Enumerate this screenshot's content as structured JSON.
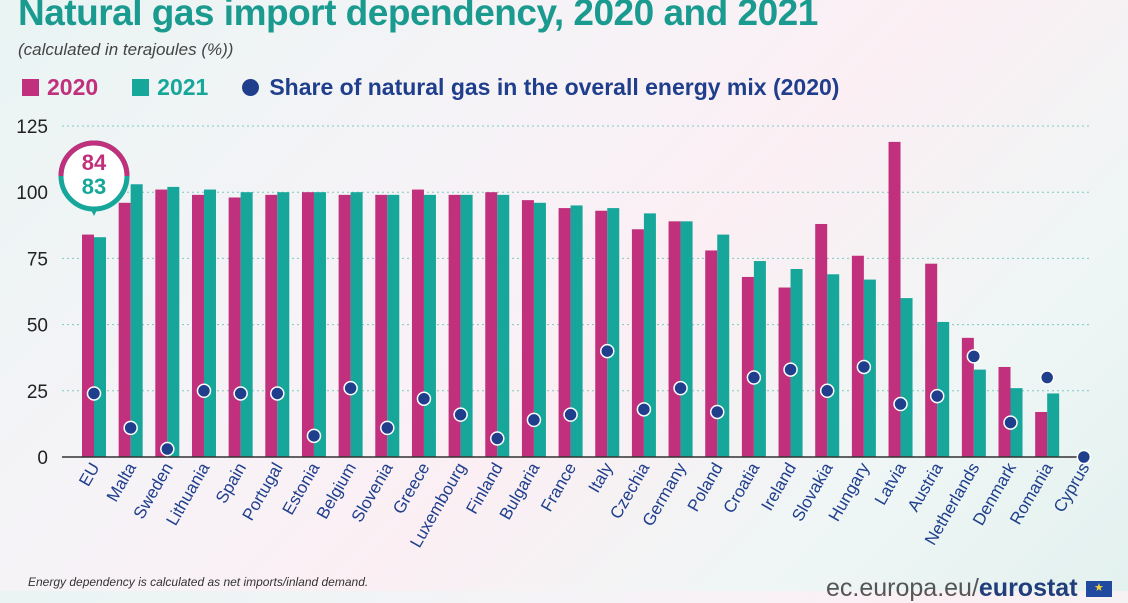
{
  "title": "Natural gas import dependency, 2020 and 2021",
  "subtitle": "(calculated in terajoules (%))",
  "legend": {
    "s2020": "2020",
    "s2021": "2021",
    "share": "Share of natural gas in the overall energy mix (2020)"
  },
  "colors": {
    "c2020": "#c0307c",
    "c2021": "#17a69a",
    "share": "#1f3e8c",
    "grid": "#7ec9c2"
  },
  "callout": {
    "v2020": "84",
    "v2021": "83"
  },
  "footnote": "Energy dependency is calculated as net imports/inland demand.",
  "source": {
    "prefix": "ec.europa.eu/",
    "brand": "eurostat"
  },
  "chart_data": {
    "type": "bar",
    "ylim": [
      0,
      125
    ],
    "yticks": [
      0,
      25,
      50,
      75,
      100,
      125
    ],
    "categories": [
      "EU",
      "Malta",
      "Sweden",
      "Lithuania",
      "Spain",
      "Portugal",
      "Estonia",
      "Belgium",
      "Slovenia",
      "Greece",
      "Luxembourg",
      "Finland",
      "Bulgaria",
      "France",
      "Italy",
      "Czechia",
      "Germany",
      "Poland",
      "Croatia",
      "Ireland",
      "Slovakia",
      "Hungary",
      "Latvia",
      "Austria",
      "Netherlands",
      "Denmark",
      "Romania",
      "Cyprus"
    ],
    "series": [
      {
        "name": "2020",
        "values": [
          84,
          96,
          101,
          99,
          98,
          99,
          100,
          99,
          99,
          101,
          99,
          100,
          97,
          94,
          93,
          86,
          89,
          78,
          68,
          64,
          88,
          76,
          119,
          73,
          45,
          34,
          17,
          0
        ]
      },
      {
        "name": "2021",
        "values": [
          83,
          103,
          102,
          101,
          100,
          100,
          100,
          100,
          99,
          99,
          99,
          99,
          96,
          95,
          94,
          92,
          89,
          84,
          74,
          71,
          69,
          67,
          60,
          51,
          33,
          26,
          24,
          0
        ]
      },
      {
        "name": "Share of natural gas in the overall energy mix (2020)",
        "values": [
          24,
          11,
          3,
          25,
          24,
          24,
          8,
          26,
          11,
          22,
          16,
          7,
          14,
          16,
          40,
          18,
          26,
          17,
          30,
          33,
          25,
          34,
          20,
          23,
          38,
          13,
          30,
          0
        ]
      }
    ]
  }
}
